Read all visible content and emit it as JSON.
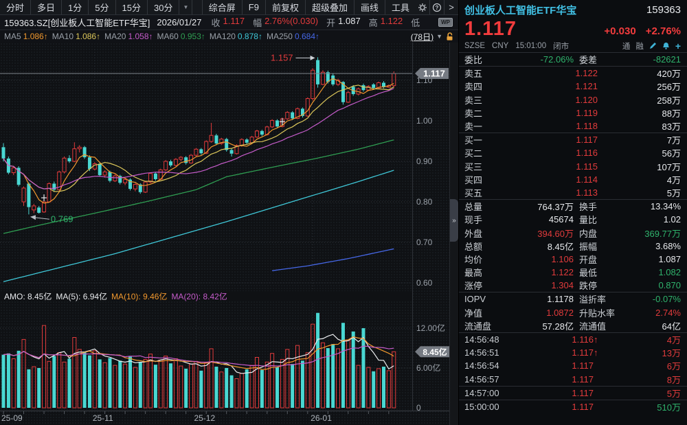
{
  "palette": {
    "red": "#e23b3c",
    "bigRed": "#f23c3d",
    "green": "#2fb36c",
    "white": "#e8eaed",
    "gray": "#9aa0a8",
    "cyanCandle": "#49d7d2",
    "titleCyan": "#41bfe3",
    "orange": "#f2992e",
    "yellow": "#ddc85a",
    "magenta": "#c65ccb",
    "maGreen": "#2f9e52",
    "maCyan": "#3fc8d8",
    "maBlue": "#4668e8",
    "tagBg": "#767b83",
    "axisText": "#9aa0a8",
    "grid": "#33373e",
    "monthGrid": "#2b2f35",
    "volWhite": "#eceef0"
  },
  "toolbar": {
    "tabs": [
      "分时",
      "多日",
      "1分",
      "5分",
      "15分",
      "30分"
    ],
    "dropdown_icon": "▼",
    "menu": [
      "综合屏",
      "F9",
      "前复权",
      "超级叠加",
      "画线",
      "工具"
    ],
    "gear_icon": "gear",
    "help_icon": "?",
    "collapse_icon": ">"
  },
  "info_bar": {
    "symbol": "159363.SZ[创业板人工智能ETF华宝]",
    "date": "2026/01/27",
    "fields": [
      {
        "label": "收",
        "value": "1.117",
        "color": "red"
      },
      {
        "label": "幅",
        "value": "2.76%(0.030)",
        "color": "red"
      },
      {
        "label": "开",
        "value": "1.087",
        "color": "white"
      },
      {
        "label": "高",
        "value": "1.122",
        "color": "red"
      },
      {
        "label": "低",
        "value": "",
        "color": "white"
      }
    ],
    "wp_badge": "WP"
  },
  "ma_bar": {
    "arrow": "↑",
    "items": [
      {
        "label": "MA5",
        "value": "1.086",
        "color": "orange"
      },
      {
        "label": "MA10",
        "value": "1.086",
        "color": "yellow"
      },
      {
        "label": "MA20",
        "value": "1.058",
        "color": "magenta"
      },
      {
        "label": "MA60",
        "value": "0.953",
        "color": "maGreen"
      },
      {
        "label": "MA120",
        "value": "0.878",
        "color": "maCyan"
      },
      {
        "label": "MA250",
        "value": "0.684",
        "color": "maBlue"
      }
    ],
    "period": "(78日)",
    "period_caret": "▼"
  },
  "amo_bar": {
    "items": [
      {
        "text": "AMO: 8.45亿",
        "color": "white"
      },
      {
        "text": "MA(5): 6.94亿",
        "color": "white"
      },
      {
        "text": "MA(10): 9.46亿",
        "color": "orange"
      },
      {
        "text": "MA(20): 8.42亿",
        "color": "magenta"
      }
    ]
  },
  "chart_data": {
    "type": "candlestick",
    "title": "159363.SZ 创业板人工智能ETF华宝 日K线 (78日)",
    "y_axis": {
      "ticks": [
        "1.10",
        "1.00",
        "0.90",
        "0.80",
        "0.70",
        "0.60"
      ],
      "min": 0.58,
      "max": 1.17
    },
    "volume_axis": {
      "ticks": [
        {
          "v": 12,
          "label": "12.00亿"
        },
        {
          "v": 6,
          "label": "6.00亿"
        },
        {
          "v": 0,
          "label": "0"
        }
      ],
      "current_tag": "8.45亿",
      "current_value": 8.45
    },
    "x_ticks": [
      {
        "i": 0,
        "label": "25-09"
      },
      {
        "i": 18,
        "label": "25-11"
      },
      {
        "i": 38,
        "label": "25-12"
      },
      {
        "i": 61,
        "label": "26-01"
      }
    ],
    "last_price": 1.117,
    "last_price_label": "1.117",
    "annotations": {
      "high": {
        "i": 62,
        "price": 1.157,
        "label": "1.157"
      },
      "low": {
        "i": 5,
        "price": 0.769,
        "label": "0.769"
      },
      "markers": [
        {
          "i": 8,
          "price": 0.81
        },
        {
          "i": 55,
          "price": 0.998
        }
      ]
    },
    "candles": [
      [
        0.935,
        0.945,
        0.9,
        0.907,
        8.0
      ],
      [
        0.907,
        0.912,
        0.868,
        0.872,
        8.2
      ],
      [
        0.872,
        0.888,
        0.866,
        0.884,
        7.4
      ],
      [
        0.884,
        0.888,
        0.838,
        0.842,
        8.6
      ],
      [
        0.8,
        0.838,
        0.79,
        0.834,
        10.3
      ],
      [
        0.845,
        0.848,
        0.769,
        0.787,
        5.8
      ],
      [
        0.78,
        0.795,
        0.772,
        0.79,
        6.2
      ],
      [
        0.786,
        0.79,
        0.771,
        0.773,
        6.0
      ],
      [
        0.775,
        0.802,
        0.773,
        0.8,
        12.4
      ],
      [
        0.8,
        0.848,
        0.798,
        0.845,
        7.0
      ],
      [
        0.845,
        0.85,
        0.826,
        0.83,
        7.8
      ],
      [
        0.83,
        0.877,
        0.828,
        0.874,
        8.3
      ],
      [
        0.874,
        0.912,
        0.87,
        0.908,
        6.9
      ],
      [
        0.908,
        0.915,
        0.896,
        0.9,
        7.4
      ],
      [
        0.9,
        0.947,
        0.898,
        0.931,
        10.6
      ],
      [
        0.931,
        0.94,
        0.922,
        0.935,
        8.8
      ],
      [
        0.935,
        0.938,
        0.906,
        0.91,
        8.4
      ],
      [
        0.91,
        0.915,
        0.876,
        0.881,
        7.9
      ],
      [
        0.881,
        0.898,
        0.878,
        0.894,
        8.6
      ],
      [
        0.894,
        0.897,
        0.862,
        0.866,
        7.3
      ],
      [
        0.866,
        0.878,
        0.86,
        0.874,
        6.8
      ],
      [
        0.874,
        0.877,
        0.848,
        0.852,
        7.5
      ],
      [
        0.852,
        0.868,
        0.849,
        0.864,
        6.4
      ],
      [
        0.864,
        0.867,
        0.843,
        0.847,
        7.1
      ],
      [
        0.847,
        0.858,
        0.841,
        0.855,
        6.6
      ],
      [
        0.855,
        0.858,
        0.828,
        0.832,
        7.7
      ],
      [
        0.832,
        0.846,
        0.826,
        0.843,
        6.1
      ],
      [
        0.843,
        0.846,
        0.82,
        0.824,
        6.9
      ],
      [
        0.824,
        0.852,
        0.822,
        0.849,
        7.3
      ],
      [
        0.849,
        0.873,
        0.846,
        0.87,
        8.1
      ],
      [
        0.87,
        0.874,
        0.852,
        0.856,
        6.5
      ],
      [
        0.856,
        0.882,
        0.854,
        0.879,
        7.2
      ],
      [
        0.879,
        0.903,
        0.876,
        0.9,
        7.8
      ],
      [
        0.9,
        0.904,
        0.886,
        0.89,
        6.7
      ],
      [
        0.89,
        0.908,
        0.888,
        0.905,
        7.4
      ],
      [
        0.905,
        0.913,
        0.9,
        0.91,
        6.3
      ],
      [
        0.91,
        0.913,
        0.892,
        0.896,
        5.9
      ],
      [
        0.896,
        0.918,
        0.894,
        0.915,
        6.6
      ],
      [
        0.915,
        0.933,
        0.912,
        0.93,
        7.0
      ],
      [
        0.93,
        0.933,
        0.916,
        0.92,
        5.6
      ],
      [
        0.92,
        0.952,
        0.918,
        0.949,
        6.8
      ],
      [
        0.949,
        0.995,
        0.946,
        0.964,
        8.9
      ],
      [
        0.964,
        0.968,
        0.94,
        0.944,
        6.2
      ],
      [
        0.944,
        0.958,
        0.941,
        0.955,
        5.4
      ],
      [
        0.955,
        0.958,
        0.924,
        0.928,
        6.0
      ],
      [
        0.928,
        0.932,
        0.912,
        0.919,
        4.9
      ],
      [
        0.919,
        0.942,
        0.917,
        0.939,
        4.4
      ],
      [
        0.939,
        0.957,
        0.936,
        0.954,
        5.2
      ],
      [
        0.954,
        0.957,
        0.942,
        0.946,
        5.8
      ],
      [
        0.946,
        0.963,
        0.944,
        0.96,
        6.4
      ],
      [
        0.96,
        0.978,
        0.958,
        0.975,
        7.6
      ],
      [
        0.975,
        0.978,
        0.962,
        0.966,
        5.7
      ],
      [
        0.966,
        0.988,
        0.964,
        0.985,
        6.9
      ],
      [
        0.985,
        1.004,
        0.982,
        1.001,
        8.2
      ],
      [
        1.001,
        1.004,
        0.982,
        0.986,
        6.1
      ],
      [
        0.986,
        1.008,
        0.984,
        1.005,
        7.3
      ],
      [
        1.005,
        1.024,
        1.002,
        1.021,
        8.8
      ],
      [
        1.021,
        1.024,
        1.002,
        1.006,
        6.6
      ],
      [
        1.006,
        1.033,
        1.004,
        1.03,
        9.4
      ],
      [
        1.03,
        1.033,
        1.008,
        1.012,
        7.1
      ],
      [
        1.012,
        1.058,
        1.01,
        1.055,
        8.3
      ],
      [
        1.055,
        1.13,
        1.05,
        1.125,
        12.6
      ],
      [
        1.15,
        1.157,
        1.082,
        1.09,
        14.3
      ],
      [
        1.09,
        1.125,
        1.088,
        1.12,
        9.8
      ],
      [
        1.12,
        1.124,
        1.092,
        1.096,
        9.0
      ],
      [
        1.112,
        1.118,
        1.086,
        1.09,
        9.6
      ],
      [
        1.09,
        1.104,
        1.086,
        1.1,
        8.9
      ],
      [
        1.096,
        1.098,
        1.04,
        1.046,
        12.8
      ],
      [
        1.046,
        1.074,
        1.044,
        1.07,
        10.2
      ],
      [
        1.084,
        1.088,
        1.062,
        1.066,
        11.5
      ],
      [
        1.066,
        1.082,
        1.063,
        1.079,
        6.4
      ],
      [
        1.088,
        1.092,
        1.072,
        1.076,
        12.0
      ],
      [
        1.076,
        1.088,
        1.074,
        1.085,
        6.1
      ],
      [
        1.09,
        1.093,
        1.078,
        1.081,
        5.5
      ],
      [
        1.081,
        1.097,
        1.079,
        1.094,
        5.9
      ],
      [
        1.094,
        1.098,
        1.08,
        1.083,
        6.2
      ],
      [
        1.083,
        1.09,
        1.081,
        1.087,
        5.6
      ],
      [
        1.087,
        1.122,
        1.082,
        1.117,
        8.45
      ]
    ],
    "short_mas": [
      {
        "period": 5,
        "color": "orange"
      },
      {
        "period": 10,
        "color": "yellow"
      },
      {
        "period": 20,
        "color": "magenta"
      }
    ],
    "long_mas": [
      {
        "name": "MA60",
        "color": "maGreen",
        "points": [
          [
            0,
            0.722
          ],
          [
            8,
            0.745
          ],
          [
            18,
            0.772
          ],
          [
            28,
            0.8
          ],
          [
            38,
            0.83
          ],
          [
            44,
            0.862
          ],
          [
            54,
            0.888
          ],
          [
            62,
            0.908
          ],
          [
            70,
            0.93
          ],
          [
            77,
            0.953
          ]
        ]
      },
      {
        "name": "MA120",
        "color": "maCyan",
        "points": [
          [
            0,
            0.603
          ],
          [
            22,
            0.672
          ],
          [
            44,
            0.751
          ],
          [
            60,
            0.812
          ],
          [
            70,
            0.85
          ],
          [
            77,
            0.878
          ]
        ]
      },
      {
        "name": "MA250",
        "color": "maBlue",
        "points": [
          [
            53,
            0.63
          ],
          [
            60,
            0.642
          ],
          [
            68,
            0.66
          ],
          [
            77,
            0.684
          ]
        ]
      }
    ],
    "vol_mas": [
      {
        "period": 5,
        "color": "volWhite"
      },
      {
        "period": 10,
        "color": "orange"
      },
      {
        "period": 20,
        "color": "magenta"
      }
    ]
  },
  "right_panel": {
    "title": "创业板人工智能ETF华宝",
    "code": "159363",
    "price": "1.117",
    "change": "+0.030",
    "change_pct": "+2.76%",
    "status": {
      "exchange": "SZSE",
      "currency": "CNY",
      "time": "15:01:00",
      "session": "闭市",
      "tags": [
        "通",
        "融"
      ]
    },
    "weibi": {
      "label": "委比",
      "value": "-72.06%",
      "label2": "委差",
      "value2": "-82621"
    },
    "asks": [
      {
        "label": "卖五",
        "price": "1.122",
        "vol": "420万"
      },
      {
        "label": "卖四",
        "price": "1.121",
        "vol": "256万"
      },
      {
        "label": "卖三",
        "price": "1.120",
        "vol": "258万"
      },
      {
        "label": "卖二",
        "price": "1.119",
        "vol": "88万"
      },
      {
        "label": "卖一",
        "price": "1.118",
        "vol": "83万"
      }
    ],
    "bids": [
      {
        "label": "买一",
        "price": "1.117",
        "vol": "7万"
      },
      {
        "label": "买二",
        "price": "1.116",
        "vol": "56万"
      },
      {
        "label": "买三",
        "price": "1.115",
        "vol": "107万"
      },
      {
        "label": "买四",
        "price": "1.114",
        "vol": "4万"
      },
      {
        "label": "买五",
        "price": "1.113",
        "vol": "5万"
      }
    ],
    "stats": [
      {
        "l": "总量",
        "v": "764.37万",
        "c": "white",
        "l2": "换手",
        "v2": "13.34%",
        "c2": "white"
      },
      {
        "l": "现手",
        "v": "45674",
        "c": "white",
        "l2": "量比",
        "v2": "1.02",
        "c2": "white"
      },
      {
        "l": "外盘",
        "v": "394.60万",
        "c": "red",
        "l2": "内盘",
        "v2": "369.77万",
        "c2": "green"
      },
      {
        "l": "总额",
        "v": "8.45亿",
        "c": "white",
        "l2": "振幅",
        "v2": "3.68%",
        "c2": "white"
      },
      {
        "l": "均价",
        "v": "1.106",
        "c": "red",
        "l2": "开盘",
        "v2": "1.087",
        "c2": "white"
      },
      {
        "l": "最高",
        "v": "1.122",
        "c": "red",
        "l2": "最低",
        "v2": "1.082",
        "c2": "green"
      },
      {
        "l": "涨停",
        "v": "1.304",
        "c": "red",
        "l2": "跌停",
        "v2": "0.870",
        "c2": "green"
      }
    ],
    "iopv_rows": [
      {
        "l": "IOPV",
        "v": "1.1178",
        "c": "white",
        "l2": "溢折率",
        "v2": "-0.07%",
        "c2": "green"
      },
      {
        "l": "净值",
        "v": "1.0872",
        "c": "red",
        "l2": "升贴水率",
        "v2": "2.74%",
        "c2": "red"
      },
      {
        "l": "流通盘",
        "v": "57.28亿",
        "c": "white",
        "l2": "流通值",
        "v2": "64亿",
        "c2": "white"
      }
    ],
    "ticks": [
      {
        "time": "14:56:48",
        "price": "1.116",
        "up": true,
        "vol": "4万",
        "vc": "red",
        "divider": false
      },
      {
        "time": "14:56:51",
        "price": "1.117",
        "up": true,
        "vol": "13万",
        "vc": "red",
        "divider": false
      },
      {
        "time": "14:56:54",
        "price": "1.117",
        "up": false,
        "vol": "6万",
        "vc": "red",
        "divider": false
      },
      {
        "time": "14:56:57",
        "price": "1.117",
        "up": false,
        "vol": "8万",
        "vc": "red",
        "divider": false
      },
      {
        "time": "14:57:00",
        "price": "1.117",
        "up": false,
        "vol": "5万",
        "vc": "red",
        "divider": true
      },
      {
        "time": "15:00:00",
        "price": "1.117",
        "up": false,
        "vol": "510万",
        "vc": "green",
        "divider": true
      }
    ]
  }
}
